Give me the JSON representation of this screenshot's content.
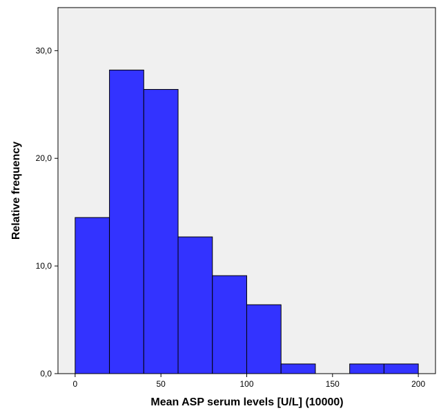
{
  "chart_data": {
    "type": "bar",
    "title": "",
    "xlabel": "Mean ASP serum levels [U/L] (10000)",
    "ylabel": "Relative frequency",
    "bin_edges": [
      0,
      20,
      40,
      60,
      80,
      100,
      120,
      140,
      160,
      180,
      200
    ],
    "values": [
      14.5,
      28.2,
      26.4,
      12.7,
      9.1,
      6.4,
      0.9,
      0,
      0.9,
      0.9
    ],
    "xlim": [
      -10,
      210
    ],
    "ylim": [
      0,
      34
    ],
    "x_ticks": [
      0,
      50,
      100,
      150,
      200
    ],
    "x_tick_labels": [
      "0",
      "50",
      "100",
      "150",
      "200"
    ],
    "y_ticks": [
      0,
      10,
      20,
      30
    ],
    "y_tick_labels": [
      "0,0",
      "10,0",
      "20,0",
      "30,0"
    ],
    "grid": false,
    "colors": {
      "bar_fill": "#3333ff",
      "bar_stroke": "#000000",
      "plot_background": "#f0f0f0"
    }
  }
}
